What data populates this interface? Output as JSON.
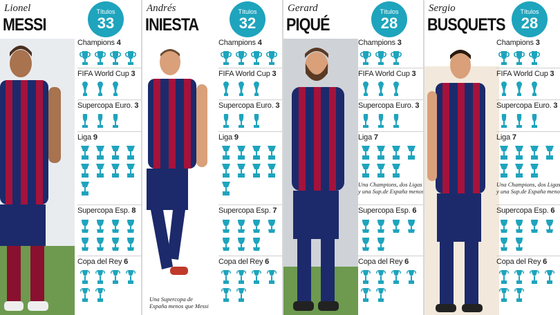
{
  "badge_label": "Títulos",
  "colors": {
    "accent": "#1ea4bd",
    "cup": "#1ea4bd"
  },
  "icons": {
    "champions": "big-eared-trophy-icon",
    "world_cup": "world-cup-trophy-icon",
    "supercopa_euro": "supercopa-trophy-icon",
    "liga": "liga-trophy-icon",
    "supercopa_esp": "supercopa-espana-trophy-icon",
    "copa_del_rey": "copa-del-rey-trophy-icon"
  },
  "players": [
    {
      "first_name": "Lionel",
      "last_name": "MESSI",
      "titles": "33",
      "sections": [
        {
          "label": "Champions",
          "count": "4"
        },
        {
          "label": "FIFA World Cup",
          "count": "3"
        },
        {
          "label": "Supercopa Euro.",
          "count": "3"
        },
        {
          "label": "Liga",
          "count": "9"
        },
        {
          "label": "Supercopa Esp.",
          "count": "8"
        },
        {
          "label": "Copa del Rey",
          "count": "6"
        }
      ],
      "note": ""
    },
    {
      "first_name": "Andrés",
      "last_name": "INIESTA",
      "titles": "32",
      "sections": [
        {
          "label": "Champions",
          "count": "4"
        },
        {
          "label": "FIFA World Cup",
          "count": "3"
        },
        {
          "label": "Supercopa Euro.",
          "count": "3"
        },
        {
          "label": "Liga",
          "count": "9"
        },
        {
          "label": "Supercopa Esp.",
          "count": "7"
        },
        {
          "label": "Copa del Rey",
          "count": "6"
        }
      ],
      "note_lines": [
        "Una Supercopa de",
        "España menos que Messi"
      ]
    },
    {
      "first_name": "Gerard",
      "last_name": "PIQUÉ",
      "titles": "28",
      "sections": [
        {
          "label": "Champions",
          "count": "3"
        },
        {
          "label": "FIFA World Cup",
          "count": "3"
        },
        {
          "label": "Supercopa Euro.",
          "count": "3"
        },
        {
          "label": "Liga",
          "count": "7"
        },
        {
          "label": "Supercopa Esp.",
          "count": "6"
        },
        {
          "label": "Copa del Rey",
          "count": "6"
        }
      ],
      "liga_note_lines": [
        "Una Champions, dos Ligas",
        "y una Sup.de España menos"
      ]
    },
    {
      "first_name": "Sergio",
      "last_name": "BUSQUETS",
      "titles": "28",
      "sections": [
        {
          "label": "Champions",
          "count": "3"
        },
        {
          "label": "FIFA World Cup",
          "count": "3"
        },
        {
          "label": "Supercopa Euro.",
          "count": "3"
        },
        {
          "label": "Liga",
          "count": "7"
        },
        {
          "label": "Supercopa Esp.",
          "count": "6"
        },
        {
          "label": "Copa del Rey",
          "count": "6"
        }
      ],
      "liga_note_lines": [
        "Una Champions, dos Ligas",
        "y una Sup.de España menos"
      ]
    }
  ]
}
